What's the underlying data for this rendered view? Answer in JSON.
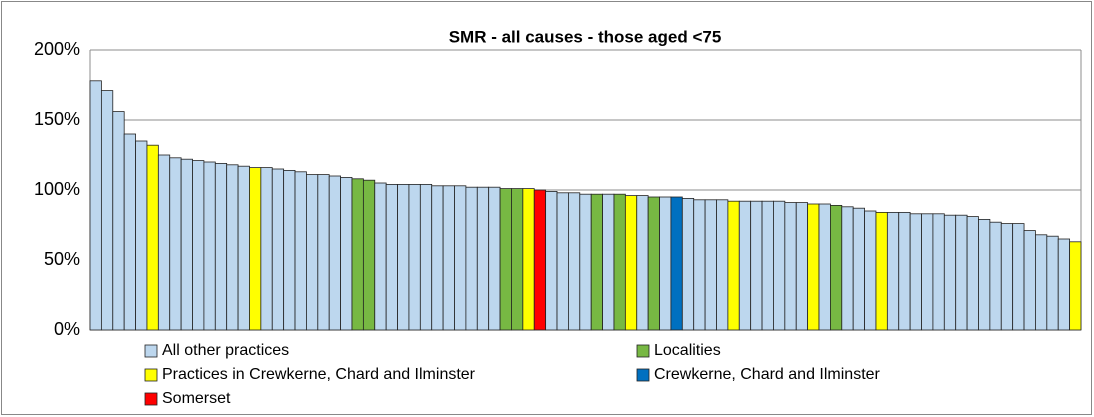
{
  "chart_data": {
    "type": "bar",
    "title": "SMR - all causes - those aged <75",
    "categories": [
      null,
      null,
      null,
      null,
      null,
      null,
      null,
      null,
      null,
      null,
      null,
      null,
      null,
      null,
      null,
      null,
      null,
      null,
      null,
      null,
      null,
      null,
      null,
      null,
      null,
      null,
      null,
      null,
      null,
      null,
      null,
      null,
      null,
      null,
      null,
      null,
      null,
      null,
      null,
      null,
      null,
      null,
      null,
      null,
      null,
      null,
      null,
      null,
      null,
      null,
      null,
      null,
      null,
      null,
      null,
      null,
      null,
      null,
      null,
      null,
      null,
      null,
      null,
      null,
      null,
      null,
      null,
      null,
      null,
      null,
      null,
      null,
      null,
      null,
      null,
      null,
      null,
      null,
      null,
      null,
      null,
      null,
      null,
      null,
      null,
      null,
      null
    ],
    "values": [
      178,
      171,
      156,
      140,
      135,
      132,
      125,
      123,
      122,
      121,
      120,
      119,
      118,
      117,
      116,
      116,
      115,
      114,
      113,
      111,
      111,
      110,
      109,
      108,
      107,
      105,
      104,
      104,
      104,
      104,
      103,
      103,
      103,
      102,
      102,
      102,
      101,
      101,
      101,
      100,
      99,
      98,
      98,
      97,
      97,
      97,
      97,
      96,
      96,
      95,
      95,
      95,
      94,
      93,
      93,
      93,
      92,
      92,
      92,
      92,
      92,
      91,
      91,
      90,
      90,
      89,
      88,
      87,
      85,
      84,
      84,
      84,
      83,
      83,
      83,
      82,
      82,
      81,
      79,
      77,
      76,
      76,
      71,
      68,
      67,
      65,
      63
    ],
    "bar_colors": [
      "#bdd7ee",
      "#bdd7ee",
      "#bdd7ee",
      "#bdd7ee",
      "#bdd7ee",
      "#ffff00",
      "#bdd7ee",
      "#bdd7ee",
      "#bdd7ee",
      "#bdd7ee",
      "#bdd7ee",
      "#bdd7ee",
      "#bdd7ee",
      "#bdd7ee",
      "#ffff00",
      "#bdd7ee",
      "#bdd7ee",
      "#bdd7ee",
      "#bdd7ee",
      "#bdd7ee",
      "#bdd7ee",
      "#bdd7ee",
      "#bdd7ee",
      "#77b843",
      "#77b843",
      "#bdd7ee",
      "#bdd7ee",
      "#bdd7ee",
      "#bdd7ee",
      "#bdd7ee",
      "#bdd7ee",
      "#bdd7ee",
      "#bdd7ee",
      "#bdd7ee",
      "#bdd7ee",
      "#bdd7ee",
      "#77b843",
      "#77b843",
      "#ffff00",
      "#ff0000",
      "#bdd7ee",
      "#bdd7ee",
      "#bdd7ee",
      "#bdd7ee",
      "#77b843",
      "#bdd7ee",
      "#77b843",
      "#ffff00",
      "#bdd7ee",
      "#77b843",
      "#bdd7ee",
      "#0070c0",
      "#bdd7ee",
      "#bdd7ee",
      "#bdd7ee",
      "#bdd7ee",
      "#ffff00",
      "#bdd7ee",
      "#bdd7ee",
      "#bdd7ee",
      "#bdd7ee",
      "#bdd7ee",
      "#bdd7ee",
      "#ffff00",
      "#bdd7ee",
      "#77b843",
      "#bdd7ee",
      "#bdd7ee",
      "#bdd7ee",
      "#ffff00",
      "#bdd7ee",
      "#bdd7ee",
      "#bdd7ee",
      "#bdd7ee",
      "#bdd7ee",
      "#bdd7ee",
      "#bdd7ee",
      "#bdd7ee",
      "#bdd7ee",
      "#bdd7ee",
      "#bdd7ee",
      "#bdd7ee",
      "#bdd7ee",
      "#bdd7ee",
      "#bdd7ee",
      "#bdd7ee",
      "#ffff00"
    ],
    "legend": [
      {
        "name": "All other practices",
        "color": "#bdd7ee"
      },
      {
        "name": "Localities",
        "color": "#77b843"
      },
      {
        "name": "Practices in Crewkerne, Chard and Ilminster",
        "color": "#ffff00"
      },
      {
        "name": "Crewkerne, Chard and Ilminster",
        "color": "#0070c0"
      },
      {
        "name": "Somerset",
        "color": "#ff0000"
      }
    ],
    "ylim": [
      0,
      200
    ],
    "yticks": [
      {
        "value": 0,
        "label": "0%"
      },
      {
        "value": 50,
        "label": "50%"
      },
      {
        "value": 100,
        "label": "100%"
      },
      {
        "value": 150,
        "label": "150%"
      },
      {
        "value": 200,
        "label": "200%"
      }
    ],
    "grid": true
  }
}
